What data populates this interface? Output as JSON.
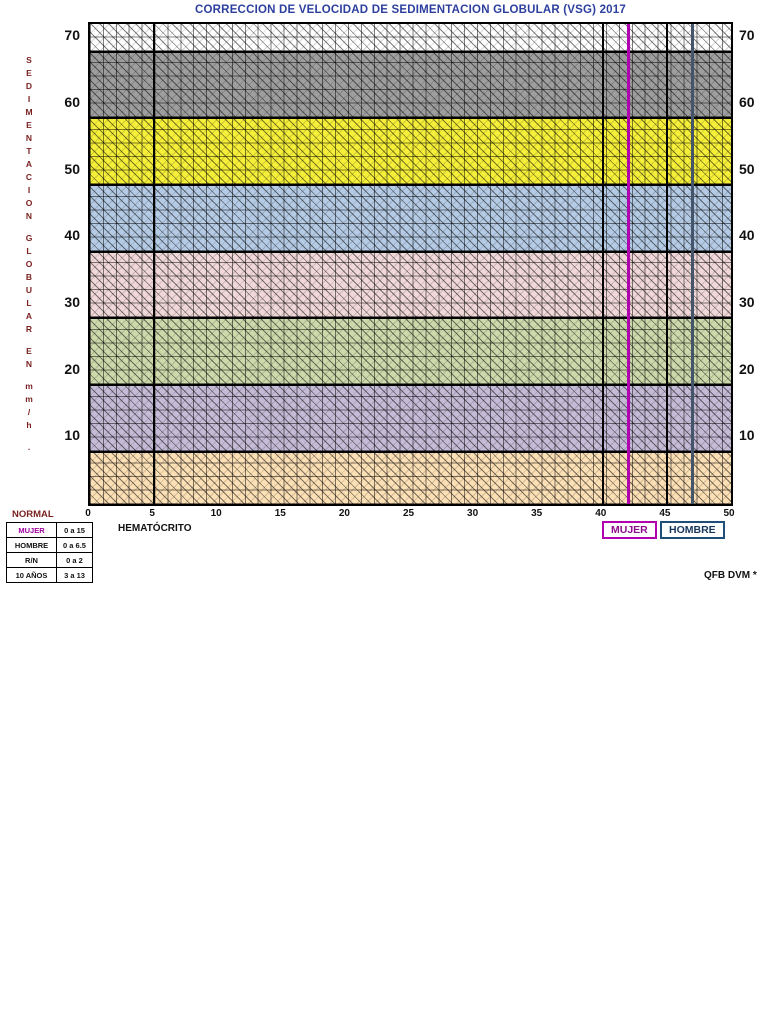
{
  "chart_data": {
    "type": "area",
    "title": "CORRECCION DE VELOCIDAD DE SEDIMENTACION GLOBULAR (VSG) 2017",
    "xlabel": "HEMATÓCRITO",
    "ylabel": "SEDIMENTACION GLOBULAR EN mm/h .",
    "xlim": [
      0,
      50
    ],
    "ylim": [
      0,
      72
    ],
    "x_ticks": [
      "0",
      "5",
      "10",
      "15",
      "20",
      "25",
      "30",
      "35",
      "40",
      "45",
      "50"
    ],
    "y_ticks": [
      "70",
      "60",
      "50",
      "40",
      "30",
      "20",
      "10"
    ],
    "grid": true,
    "legend_position": "below-axis",
    "bands": [
      {
        "name": "band-white",
        "from": 68,
        "to": 72,
        "color": "#ffffff"
      },
      {
        "name": "band-gray",
        "from": 58,
        "to": 68,
        "color": "#9e9e9e"
      },
      {
        "name": "band-yellow",
        "from": 48,
        "to": 58,
        "color": "#f6ef3a"
      },
      {
        "name": "band-blue",
        "from": 38,
        "to": 48,
        "color": "#b5cbe5"
      },
      {
        "name": "band-pink",
        "from": 28,
        "to": 38,
        "color": "#f1d8d8"
      },
      {
        "name": "band-green",
        "from": 18,
        "to": 28,
        "color": "#cdd9ab"
      },
      {
        "name": "band-lavender",
        "from": 8,
        "to": 18,
        "color": "#c5bbd6"
      },
      {
        "name": "band-peach",
        "from": 0,
        "to": 8,
        "color": "#fbdfb5"
      }
    ],
    "reference_lines": [
      {
        "label": "MUJER",
        "x": 42,
        "color": "#b000b0"
      },
      {
        "label": "HOMBRE",
        "x": 47,
        "color": "#44546a"
      }
    ],
    "heavy_gridlines_x": [
      5,
      40,
      45
    ]
  },
  "legend": {
    "mujer": "MUJER",
    "hombre": "HOMBRE"
  },
  "normal_table": {
    "title": "NORMAL",
    "rows": [
      {
        "label": "MUJER",
        "value": "0 a 15"
      },
      {
        "label": "HOMBRE",
        "value": "0 a 6.5"
      },
      {
        "label": "R/N",
        "value": "0 a 2"
      },
      {
        "label": "10 AÑOS",
        "value": "3 a 13"
      }
    ]
  },
  "credit": "QFB DVM *",
  "colors": {
    "title": "#2d3f9e",
    "axis_title_red": "#7a1f1f",
    "mujer_accent": "#b000b0",
    "hombre_accent": "#1f4e79"
  }
}
